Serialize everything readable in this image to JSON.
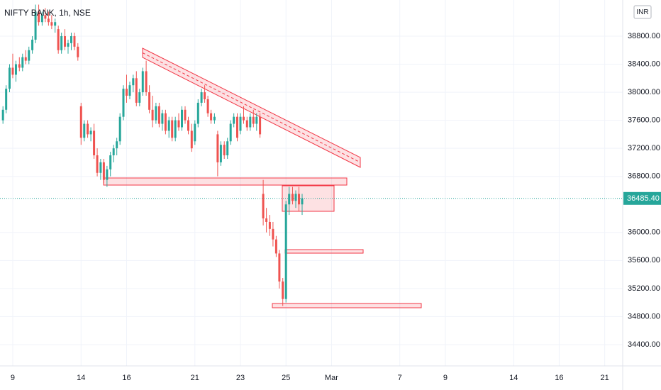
{
  "chart_data": {
    "type": "candlestick",
    "title": "NIFTY BANK, 1h, NSE",
    "currency": "INR",
    "up_color": "#26a69a",
    "down_color": "#ef5350",
    "grid": true,
    "xlim": [
      -0.56,
      26.79
    ],
    "xticks": [
      {
        "value": 0,
        "label": "9"
      },
      {
        "value": 3,
        "label": "14"
      },
      {
        "value": 5,
        "label": "16"
      },
      {
        "value": 8,
        "label": "21"
      },
      {
        "value": 10,
        "label": "23"
      },
      {
        "value": 12,
        "label": "25"
      },
      {
        "value": 14,
        "label": "Mar"
      },
      {
        "value": 17,
        "label": "7"
      },
      {
        "value": 19,
        "label": "9"
      },
      {
        "value": 22,
        "label": "14"
      },
      {
        "value": 24,
        "label": "16"
      },
      {
        "value": 26,
        "label": "21"
      }
    ],
    "ylim": [
      34096,
      39316
    ],
    "yticks": [
      {
        "value": 34400,
        "label": "34400.00"
      },
      {
        "value": 34800,
        "label": "34800.00"
      },
      {
        "value": 35200,
        "label": "35200.00"
      },
      {
        "value": 35600,
        "label": "35600.00"
      },
      {
        "value": 36000,
        "label": "36000.00"
      },
      {
        "value": 36800,
        "label": "36800.00"
      },
      {
        "value": 37200,
        "label": "37200.00"
      },
      {
        "value": 37600,
        "label": "37600.00"
      },
      {
        "value": 38000,
        "label": "38000.00"
      },
      {
        "value": 38400,
        "label": "38400.00"
      },
      {
        "value": 38800,
        "label": "38800.00"
      }
    ],
    "last_price": {
      "value": 36485.4,
      "label": "36485.40"
    },
    "x": [
      -0.43,
      -0.29,
      -0.14,
      0,
      0.14,
      0.29,
      0.43,
      0.57,
      0.71,
      0.86,
      1,
      1.14,
      1.29,
      1.43,
      1.57,
      1.71,
      1.86,
      2,
      2.14,
      2.29,
      2.43,
      2.57,
      2.71,
      2.86,
      3,
      3.14,
      3.29,
      3.43,
      3.57,
      3.71,
      3.86,
      4,
      4.14,
      4.29,
      4.43,
      4.57,
      4.71,
      4.86,
      5,
      5.14,
      5.29,
      5.43,
      5.57,
      5.71,
      5.86,
      6,
      6.14,
      6.29,
      6.43,
      6.57,
      6.71,
      6.86,
      7,
      7.14,
      7.29,
      7.43,
      7.57,
      7.71,
      7.86,
      8,
      8.14,
      8.29,
      8.43,
      8.57,
      8.71,
      8.86,
      9,
      9.14,
      9.29,
      9.43,
      9.57,
      9.71,
      9.86,
      10,
      10.14,
      10.29,
      10.43,
      10.57,
      10.71,
      10.86,
      11,
      11.14,
      11.29,
      11.43,
      11.57,
      11.71,
      11.86,
      12,
      12.14,
      12.29,
      12.43,
      12.57,
      12.71
    ],
    "open": [
      37600,
      37750,
      38050,
      38350,
      38250,
      38400,
      38350,
      38500,
      38450,
      38600,
      38750,
      39150,
      39000,
      39100,
      39050,
      39000,
      38950,
      38900,
      38600,
      38800,
      38650,
      38700,
      38800,
      38650,
      37800,
      37350,
      37550,
      37400,
      37450,
      37100,
      36850,
      37000,
      36750,
      36900,
      37100,
      37200,
      37300,
      37650,
      38050,
      37950,
      38100,
      38200,
      37850,
      38000,
      38300,
      38000,
      37750,
      37600,
      37800,
      37550,
      37700,
      37450,
      37600,
      37350,
      37600,
      37500,
      37750,
      37600,
      37450,
      37300,
      37550,
      37850,
      38000,
      37900,
      37700,
      37600,
      37400,
      37000,
      37250,
      37100,
      37300,
      37550,
      37650,
      37450,
      37650,
      37600,
      37500,
      37650,
      37550,
      37650,
      36550,
      36200,
      36150,
      36050,
      35900,
      35700,
      35300,
      35050,
      36400,
      36550,
      36450,
      36550,
      36400
    ],
    "high": [
      37800,
      38100,
      38400,
      38550,
      38450,
      38500,
      38550,
      38600,
      38650,
      38800,
      39250,
      39250,
      39150,
      39200,
      39150,
      39100,
      39050,
      38950,
      38850,
      38900,
      38750,
      38850,
      38850,
      38700,
      37850,
      37600,
      37600,
      37500,
      37550,
      37200,
      37050,
      37050,
      36950,
      37150,
      37250,
      37350,
      37700,
      38100,
      38250,
      38150,
      38250,
      38300,
      38050,
      38350,
      38450,
      38100,
      37950,
      37850,
      37850,
      37750,
      37750,
      37650,
      37650,
      37650,
      37700,
      37800,
      37800,
      37650,
      37550,
      37600,
      37900,
      38050,
      38100,
      37950,
      37750,
      37700,
      37450,
      37300,
      37300,
      37350,
      37600,
      37700,
      37700,
      37700,
      37800,
      37650,
      37700,
      37750,
      37700,
      37700,
      36750,
      36350,
      36250,
      36150,
      35950,
      35750,
      35350,
      36450,
      36650,
      36650,
      36600,
      36650,
      36550
    ],
    "low": [
      37550,
      37700,
      38000,
      38200,
      38150,
      38300,
      38300,
      38400,
      38400,
      38550,
      38700,
      38950,
      38950,
      39000,
      38950,
      38900,
      38850,
      38550,
      38550,
      38600,
      38550,
      38600,
      38600,
      38450,
      37250,
      37300,
      37350,
      37300,
      37050,
      36800,
      36750,
      36700,
      36650,
      36800,
      37000,
      37100,
      37250,
      37600,
      37850,
      37900,
      38000,
      37800,
      37800,
      37950,
      37950,
      37700,
      37500,
      37550,
      37500,
      37450,
      37400,
      37350,
      37300,
      37300,
      37450,
      37450,
      37550,
      37400,
      37150,
      37250,
      37500,
      37800,
      37850,
      37650,
      37550,
      37550,
      36800,
      36950,
      37050,
      37050,
      37250,
      37500,
      37300,
      37400,
      37550,
      37450,
      37450,
      37500,
      37450,
      37350,
      36100,
      36000,
      35950,
      35800,
      35650,
      35200,
      34950,
      35000,
      36250,
      36400,
      36350,
      36300,
      36250
    ],
    "close": [
      37750,
      38050,
      38350,
      38250,
      38400,
      38350,
      38500,
      38450,
      38600,
      38750,
      39150,
      39000,
      39100,
      39050,
      39000,
      38950,
      39000,
      38600,
      38800,
      38650,
      38700,
      38800,
      38650,
      38500,
      37350,
      37550,
      37400,
      37450,
      37100,
      36850,
      37000,
      36750,
      36900,
      37100,
      37200,
      37300,
      37650,
      38050,
      37950,
      38100,
      38200,
      37850,
      38000,
      38300,
      38000,
      37750,
      37600,
      37800,
      37550,
      37700,
      37450,
      37600,
      37350,
      37600,
      37500,
      37750,
      37600,
      37450,
      37200,
      37550,
      37850,
      38000,
      37900,
      37700,
      37600,
      37650,
      37000,
      37250,
      37100,
      37300,
      37550,
      37650,
      37350,
      37650,
      37600,
      37500,
      37650,
      37550,
      37650,
      37400,
      36200,
      36150,
      36050,
      35900,
      35700,
      35300,
      35050,
      36400,
      36550,
      36450,
      36550,
      36400,
      36485.4
    ]
  }
}
